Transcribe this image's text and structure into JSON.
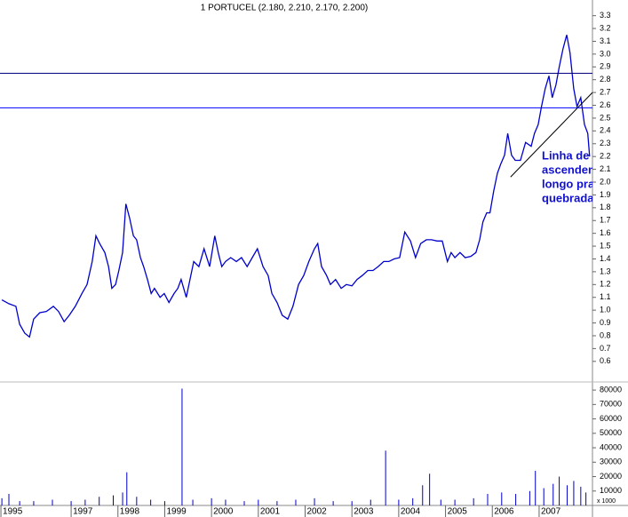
{
  "chart_data": [
    {
      "type": "line",
      "title": "1 PORTUCEL (2.180, 2.210, 2.170, 2.200)",
      "color": "#0000cc",
      "x": [
        1995.52,
        1995.67,
        1995.82,
        1995.9,
        1996.01,
        1996.11,
        1996.2,
        1996.33,
        1996.47,
        1996.62,
        1996.73,
        1996.85,
        1996.96,
        1997.09,
        1997.23,
        1997.34,
        1997.45,
        1997.53,
        1997.61,
        1997.72,
        1997.8,
        1997.87,
        1997.95,
        1998.02,
        1998.1,
        1998.17,
        1998.25,
        1998.33,
        1998.4,
        1998.48,
        1998.55,
        1998.63,
        1998.71,
        1998.78,
        1998.9,
        1998.99,
        1999.09,
        1999.2,
        1999.28,
        1999.35,
        1999.46,
        1999.54,
        1999.62,
        1999.73,
        1999.84,
        1999.96,
        2000.07,
        2000.15,
        2000.22,
        2000.3,
        2000.41,
        2000.53,
        2000.64,
        2000.76,
        2000.87,
        2000.98,
        2001.1,
        2001.21,
        2001.29,
        2001.4,
        2001.51,
        2001.63,
        2001.74,
        2001.86,
        2001.97,
        2002.08,
        2002.2,
        2002.27,
        2002.35,
        2002.46,
        2002.54,
        2002.65,
        2002.77,
        2002.88,
        2003.0,
        2003.11,
        2003.22,
        2003.34,
        2003.45,
        2003.56,
        2003.68,
        2003.79,
        2003.9,
        2004.02,
        2004.13,
        2004.25,
        2004.36,
        2004.47,
        2004.59,
        2004.7,
        2004.82,
        2004.93,
        2005.04,
        2005.12,
        2005.2,
        2005.31,
        2005.42,
        2005.54,
        2005.65,
        2005.73,
        2005.8,
        2005.88,
        2005.95,
        2006.03,
        2006.11,
        2006.18,
        2006.26,
        2006.33,
        2006.41,
        2006.49,
        2006.6,
        2006.71,
        2006.83,
        2006.9,
        2006.98,
        2007.05,
        2007.13,
        2007.21,
        2007.28,
        2007.36,
        2007.43,
        2007.51,
        2007.59,
        2007.66,
        2007.74,
        2007.81,
        2007.89,
        2007.97,
        2008.04,
        2008.08
      ],
      "values": [
        1.08,
        1.05,
        1.03,
        0.89,
        0.82,
        0.79,
        0.93,
        0.98,
        0.99,
        1.03,
        0.99,
        0.91,
        0.96,
        1.03,
        1.13,
        1.2,
        1.38,
        1.58,
        1.52,
        1.45,
        1.34,
        1.17,
        1.2,
        1.31,
        1.45,
        1.83,
        1.72,
        1.58,
        1.55,
        1.41,
        1.34,
        1.24,
        1.13,
        1.17,
        1.1,
        1.13,
        1.06,
        1.13,
        1.17,
        1.24,
        1.1,
        1.24,
        1.38,
        1.34,
        1.48,
        1.34,
        1.58,
        1.44,
        1.34,
        1.38,
        1.41,
        1.38,
        1.41,
        1.34,
        1.41,
        1.48,
        1.34,
        1.27,
        1.13,
        1.06,
        0.96,
        0.93,
        1.03,
        1.2,
        1.27,
        1.38,
        1.48,
        1.52,
        1.34,
        1.27,
        1.2,
        1.24,
        1.17,
        1.2,
        1.19,
        1.24,
        1.27,
        1.31,
        1.31,
        1.34,
        1.38,
        1.38,
        1.4,
        1.41,
        1.61,
        1.54,
        1.41,
        1.52,
        1.55,
        1.55,
        1.54,
        1.54,
        1.38,
        1.45,
        1.41,
        1.45,
        1.41,
        1.42,
        1.45,
        1.55,
        1.69,
        1.76,
        1.76,
        1.93,
        2.07,
        2.14,
        2.21,
        2.38,
        2.21,
        2.17,
        2.17,
        2.31,
        2.28,
        2.38,
        2.45,
        2.59,
        2.73,
        2.83,
        2.66,
        2.76,
        2.9,
        3.04,
        3.15,
        3.01,
        2.73,
        2.59,
        2.66,
        2.45,
        2.38,
        2.2
      ],
      "xlim": [
        1995.48,
        2008.14
      ],
      "xticks": [
        {
          "value": 1995.5,
          "label": "1995"
        },
        1997,
        1998,
        1999,
        2000,
        2001,
        2002,
        2003,
        2004,
        2005,
        2006,
        2007
      ],
      "ylim": [
        0.55,
        3.36
      ],
      "yticks": [
        0.6,
        0.7,
        0.8,
        0.9,
        {
          "value": 1,
          "label": "1.0"
        },
        1.1,
        1.2,
        1.3,
        1.4,
        1.5,
        1.6,
        1.7,
        1.8,
        1.9,
        {
          "value": 2,
          "label": "2.0"
        },
        2.1,
        2.2,
        2.3,
        2.4,
        2.5,
        2.6,
        2.7,
        2.8,
        2.9,
        {
          "value": 3,
          "label": "3.0"
        },
        3.1,
        3.2,
        3.3
      ],
      "hlines": [
        {
          "value": 2.85,
          "color": "#000080"
        },
        {
          "value": 2.58,
          "color": "#0000ff"
        }
      ],
      "trendline": {
        "x": [
          2006.39,
          2008.14
        ],
        "y": [
          2.04,
          2.7
        ],
        "color": "#000000"
      },
      "annotations": [
        "Linha de",
        "ascenden",
        "longo pra",
        "quebrada"
      ]
    },
    {
      "type": "bar",
      "color": "#0000cc",
      "ylabel": "x 1000",
      "x": [
        1995.52,
        1995.67,
        1995.9,
        1996.2,
        1996.6,
        1997.0,
        1997.3,
        1997.6,
        1997.9,
        1998.1,
        1998.19,
        1998.4,
        1998.7,
        1999.0,
        1999.37,
        1999.6,
        2000.0,
        2000.3,
        2000.7,
        2001.0,
        2001.4,
        2001.8,
        2002.2,
        2002.6,
        2003.0,
        2003.4,
        2003.72,
        2004.0,
        2004.3,
        2004.51,
        2004.66,
        2004.9,
        2005.2,
        2005.6,
        2005.9,
        2006.2,
        2006.5,
        2006.8,
        2006.92,
        2007.1,
        2007.3,
        2007.43,
        2007.6,
        2007.74,
        2007.89,
        2008.0
      ],
      "values": [
        5000,
        8000,
        3000,
        3000,
        4000,
        3000,
        4000,
        6000,
        7000,
        9000,
        23000,
        6000,
        4000,
        3000,
        81000,
        4000,
        5000,
        4000,
        3000,
        4000,
        3000,
        4000,
        5000,
        3000,
        3000,
        4000,
        38000,
        4000,
        5000,
        14000,
        22000,
        4000,
        4000,
        5000,
        8000,
        9000,
        8000,
        10000,
        24000,
        12000,
        15000,
        20000,
        14000,
        17000,
        13000,
        9000
      ],
      "ylim": [
        0,
        84000
      ],
      "yticks": [
        10000,
        20000,
        30000,
        40000,
        50000,
        60000,
        70000,
        80000
      ]
    }
  ]
}
